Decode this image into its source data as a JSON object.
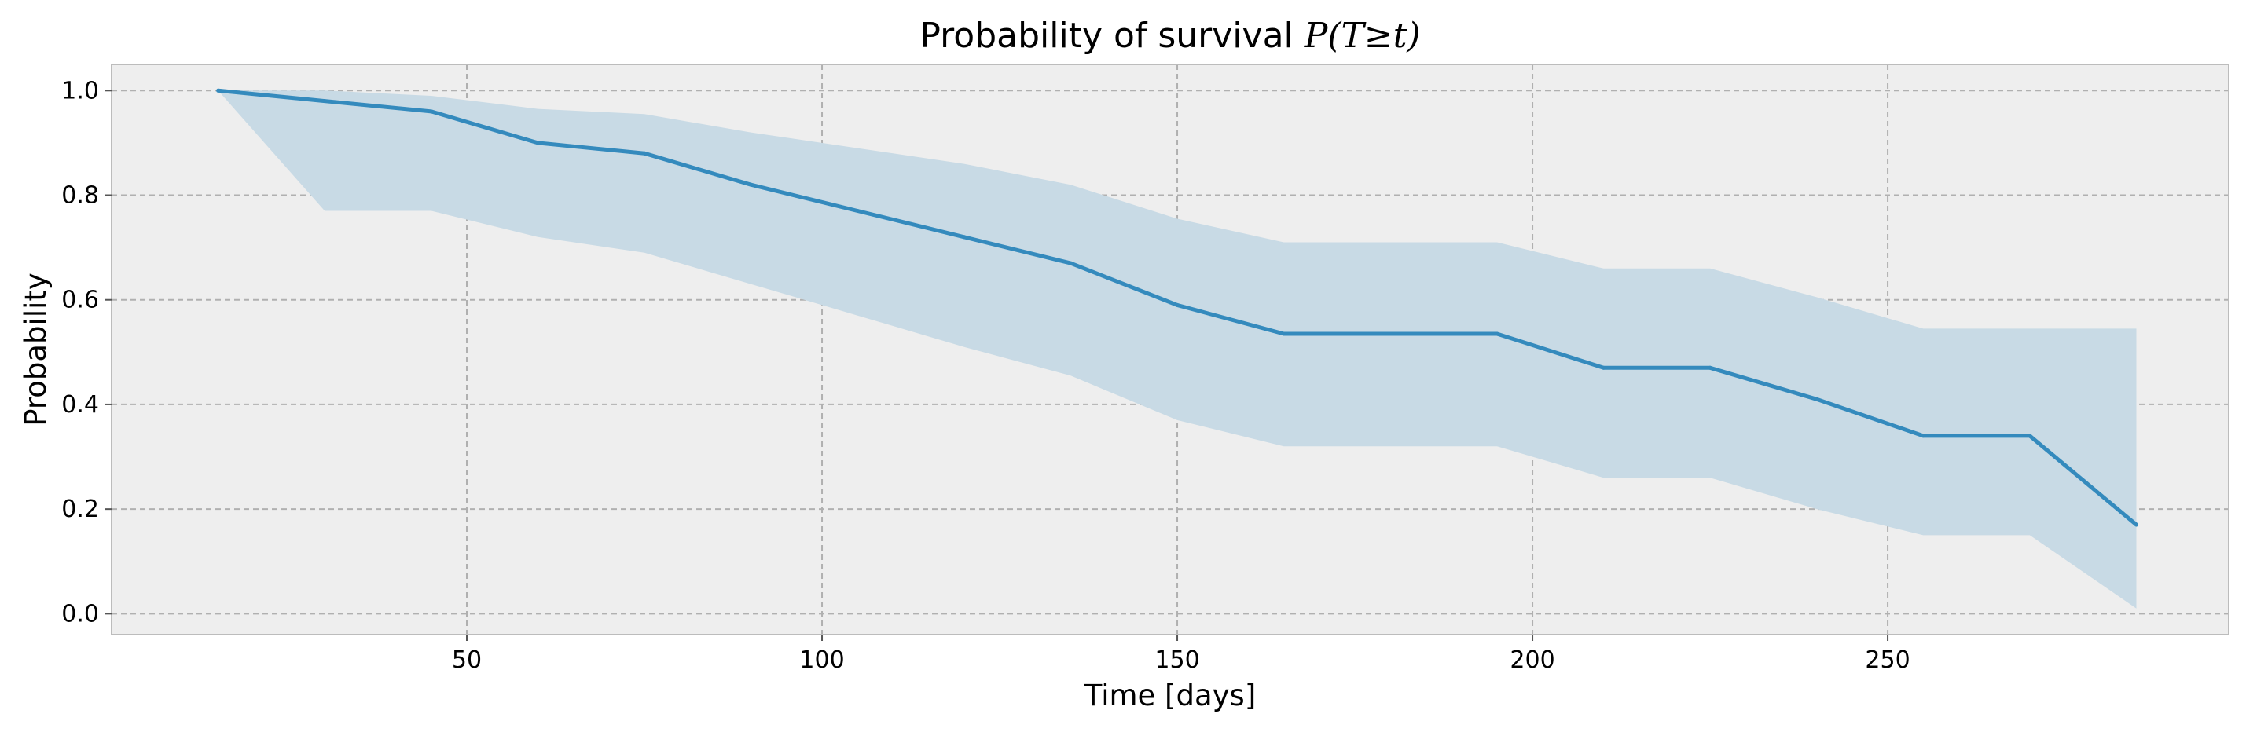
{
  "chart_data": {
    "type": "line",
    "title_prefix": "Probability of survival ",
    "title_math": "P(T≥t)",
    "xlabel": "Time [days]",
    "ylabel": "Probability",
    "xlim": [
      0,
      298
    ],
    "ylim": [
      -0.04,
      1.05
    ],
    "x_ticks": [
      50,
      100,
      150,
      200,
      250
    ],
    "x_tick_labels": [
      "50",
      "100",
      "150",
      "200",
      "250"
    ],
    "y_ticks": [
      0.0,
      0.2,
      0.4,
      0.6,
      0.8,
      1.0
    ],
    "y_tick_labels": [
      "0.0",
      "0.2",
      "0.4",
      "0.6",
      "0.8",
      "1.0"
    ],
    "grid": true,
    "colors": {
      "line": "#348abd",
      "band": "#c8dae5",
      "plot_bg": "#eeeeee",
      "plot_border": "#bcbcbc"
    },
    "series": [
      {
        "x": [
          15,
          30,
          45,
          60,
          75,
          90,
          105,
          120,
          135,
          150,
          165,
          180,
          195,
          210,
          225,
          240,
          255,
          270,
          285
        ],
        "y": [
          1.0,
          0.98,
          0.96,
          0.9,
          0.88,
          0.82,
          0.77,
          0.72,
          0.67,
          0.59,
          0.535,
          0.535,
          0.535,
          0.47,
          0.47,
          0.41,
          0.34,
          0.34,
          0.17
        ],
        "lower": [
          1.0,
          0.77,
          0.77,
          0.72,
          0.69,
          0.63,
          0.57,
          0.51,
          0.455,
          0.37,
          0.32,
          0.32,
          0.32,
          0.26,
          0.26,
          0.2,
          0.15,
          0.15,
          0.01
        ],
        "upper": [
          1.0,
          1.0,
          0.99,
          0.965,
          0.955,
          0.92,
          0.89,
          0.86,
          0.82,
          0.755,
          0.71,
          0.71,
          0.71,
          0.66,
          0.66,
          0.605,
          0.545,
          0.545,
          0.545
        ]
      }
    ]
  }
}
